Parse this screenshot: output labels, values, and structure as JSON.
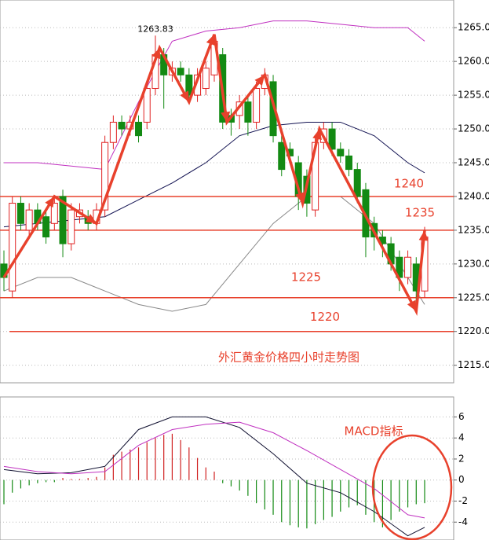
{
  "chart_data": [
    {
      "type": "candlestick",
      "title": "外汇黄金价格四小时走势图",
      "ylim": [
        1212.4,
        1269.1
      ],
      "yticks": [
        {
          "value": 1265,
          "label": "1265.0"
        },
        {
          "value": 1260,
          "label": "1260.0"
        },
        {
          "value": 1255,
          "label": "1255.0"
        },
        {
          "value": 1250,
          "label": "1250.0"
        },
        {
          "value": 1245,
          "label": "1245.0"
        },
        {
          "value": 1240,
          "label": "1240.0"
        },
        {
          "value": 1235,
          "label": "1235.0"
        },
        {
          "value": 1230,
          "label": "1230.0"
        },
        {
          "value": 1225,
          "label": "1225.0"
        },
        {
          "value": 1220,
          "label": "1220.0"
        },
        {
          "value": 1215,
          "label": "1215.0"
        }
      ],
      "grid": true,
      "up_color": "#e02020",
      "down_color": "#138a13",
      "candles": {
        "open": [
          1230,
          1226,
          1239,
          1235,
          1238,
          1237,
          1236,
          1240,
          1233,
          1237,
          1237,
          1236,
          1238,
          1248,
          1251,
          1250,
          1251,
          1251,
          1256,
          1261,
          1258,
          1259,
          1258,
          1255,
          1256,
          1258,
          1261,
          1252,
          1252,
          1254,
          1251,
          1256,
          1257,
          1248,
          1247,
          1245,
          1243,
          1238,
          1248,
          1250,
          1247,
          1246,
          1244,
          1241,
          1236,
          1234,
          1233,
          1231,
          1228,
          1230,
          1226
        ],
        "high": [
          1232,
          1240,
          1240,
          1239,
          1239,
          1238,
          1240,
          1241,
          1239,
          1239,
          1238,
          1239,
          1249,
          1252,
          1252,
          1252,
          1252,
          1257,
          1263.83,
          1262,
          1260,
          1260,
          1259,
          1259,
          1260,
          1263.5,
          1262,
          1253,
          1255,
          1255,
          1257,
          1259,
          1258,
          1249,
          1248,
          1246,
          1244,
          1249,
          1251,
          1251,
          1248,
          1247,
          1245,
          1242,
          1237,
          1235,
          1234,
          1232,
          1232,
          1231,
          1235.5
        ],
        "low": [
          1226,
          1225,
          1235,
          1234,
          1235,
          1233,
          1235,
          1231,
          1232,
          1236,
          1235,
          1235,
          1237,
          1247,
          1249,
          1249,
          1248,
          1250,
          1255,
          1253,
          1257,
          1257,
          1254,
          1254,
          1255,
          1257,
          1250,
          1249,
          1250,
          1249,
          1250,
          1255,
          1248,
          1243,
          1245,
          1238,
          1237,
          1237,
          1247,
          1246,
          1245,
          1243,
          1239,
          1231,
          1232,
          1231,
          1229,
          1226,
          1227,
          1223,
          1225
        ],
        "close": [
          1228,
          1239,
          1236,
          1238,
          1236,
          1234,
          1239,
          1233,
          1238,
          1238,
          1236,
          1238,
          1248,
          1251,
          1250,
          1251,
          1249,
          1256,
          1261,
          1258,
          1259,
          1258,
          1255,
          1258,
          1259,
          1263,
          1251,
          1251,
          1254,
          1251,
          1256,
          1258,
          1249,
          1244,
          1246,
          1240,
          1239,
          1248,
          1250,
          1247,
          1246,
          1244,
          1240,
          1234,
          1234,
          1233,
          1230,
          1228,
          1231,
          1226,
          1234
        ]
      },
      "line_x": [
        0,
        4,
        8,
        12,
        16,
        20,
        24,
        28,
        32,
        36,
        40,
        44,
        48,
        50
      ],
      "lines": [
        {
          "color": "#c030c0",
          "values": [
            1245,
            1245,
            1244.5,
            1244,
            1254,
            1263,
            1264.5,
            1265,
            1266,
            1266,
            1265.5,
            1265,
            1265,
            1263
          ]
        },
        {
          "color": "#101050",
          "values": [
            1235.5,
            1236,
            1236.5,
            1237,
            1239.5,
            1242,
            1245,
            1249,
            1250.5,
            1251,
            1251,
            1249,
            1245,
            1243.5
          ]
        },
        {
          "color": "#888888",
          "values": [
            1226,
            1228,
            1228,
            1226,
            1224,
            1223,
            1224,
            1230,
            1236,
            1240,
            1240,
            1236,
            1228,
            1224
          ]
        }
      ],
      "hlines": [
        1240,
        1235,
        1225,
        1220
      ],
      "hline_color": "#e8412c",
      "trend": {
        "color": "#e8412c",
        "x": [
          0,
          6,
          11,
          18.5,
          22,
          25,
          26.5,
          31,
          35.5,
          37.5,
          49,
          50
        ],
        "y": [
          1228,
          1240,
          1236,
          1262,
          1254,
          1264,
          1251,
          1258,
          1239,
          1250,
          1223,
          1235
        ]
      }
    },
    {
      "type": "macd",
      "title": "MACD指标",
      "ylim": [
        -5.7,
        7.9
      ],
      "yticks": [
        6,
        4,
        2,
        0,
        -2,
        -4
      ],
      "grid": true,
      "up_color": "#d02020",
      "down_color": "#138a13",
      "values": [
        -2.3,
        -1.2,
        -0.8,
        -0.5,
        -0.3,
        -0.2,
        -0.2,
        0.2,
        0.1,
        0.1,
        0.2,
        0.3,
        1.2,
        2.4,
        2.7,
        2.9,
        3.1,
        3.6,
        4.0,
        4.3,
        4.4,
        3.8,
        3.1,
        2.1,
        1.2,
        0.8,
        -0.3,
        -0.6,
        -1,
        -1.5,
        -2.2,
        -2.8,
        -3.3,
        -4,
        -4.3,
        -4.5,
        -4.6,
        -4.2,
        -3.8,
        -3.5,
        -3,
        -2.6,
        -2.4,
        -3.3,
        -4,
        -4.5,
        -3.8,
        -3,
        -2.6,
        -2.3,
        -2.2
      ],
      "line_x": [
        0,
        4,
        8,
        12,
        16,
        20,
        24,
        28,
        32,
        36,
        40,
        44,
        48,
        50
      ],
      "lines": [
        {
          "color": "#101030",
          "values": [
            1.0,
            0.6,
            0.7,
            1.3,
            4.8,
            6.0,
            6.0,
            5.0,
            2.5,
            -0.3,
            -1.2,
            -3,
            -5.3,
            -4.5
          ]
        },
        {
          "color": "#c030c0",
          "values": [
            1.3,
            0.8,
            0.6,
            0.8,
            3.3,
            4.8,
            5.3,
            5.5,
            4.5,
            2.8,
            1.0,
            -0.8,
            -3.3,
            -3.6
          ]
        }
      ],
      "highlight_color": "#e8412c"
    }
  ]
}
